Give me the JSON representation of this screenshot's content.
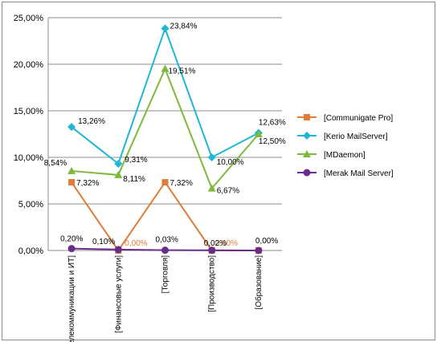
{
  "chart_data": {
    "type": "line",
    "categories": [
      "[Телекоммуникации и ИТ]",
      "[Финансовые услуги]",
      "[Торговля]",
      "[Производство]",
      "[Образование]"
    ],
    "ylim": [
      0,
      25
    ],
    "yticks": [
      0,
      5,
      10,
      15,
      20,
      25
    ],
    "ytick_labels": [
      "0,00%",
      "5,00%",
      "10,00%",
      "15,00%",
      "20,00%",
      "25,00%"
    ],
    "grid": true,
    "legend_position": "right",
    "series": [
      {
        "name": "[Communigate Pro]",
        "color": "#e07b39",
        "marker": "square",
        "values": [
          7.32,
          0,
          7.32,
          0,
          0
        ],
        "labels": [
          "7,32%",
          "0,00%",
          "7,32%",
          "0,00%",
          ""
        ],
        "label_colors": [
          "#000000",
          "#e07b39",
          "#000000",
          "#e07b39",
          "#000000"
        ]
      },
      {
        "name": "[Kerio MailServer]",
        "color": "#1fb5d4",
        "marker": "diamond",
        "values": [
          13.26,
          9.31,
          23.84,
          10.0,
          12.63
        ],
        "labels": [
          "13,26%",
          "9,31%",
          "23,84%",
          "10,00%",
          "12,63%"
        ],
        "label_colors": [
          "#000000",
          "#000000",
          "#000000",
          "#000000",
          "#000000"
        ]
      },
      {
        "name": "[MDaemon]",
        "color": "#7dba3c",
        "marker": "triangle",
        "values": [
          8.54,
          8.11,
          19.51,
          6.67,
          12.5
        ],
        "labels": [
          "8,54%",
          "8,11%",
          "19,51%",
          "6,67%",
          "12,50%"
        ],
        "label_colors": [
          "#000000",
          "#000000",
          "#000000",
          "#000000",
          "#000000"
        ]
      },
      {
        "name": "[Merak Mail Server]",
        "color": "#6a2c8c",
        "marker": "circle",
        "values": [
          0.2,
          0.1,
          0.03,
          0.02,
          0.0
        ],
        "labels": [
          "0,20%",
          "0,10%",
          "0,03%",
          "0,02%",
          "0,00%"
        ],
        "label_colors": [
          "#000000",
          "#000000",
          "#000000",
          "#000000",
          "#000000"
        ]
      }
    ]
  }
}
